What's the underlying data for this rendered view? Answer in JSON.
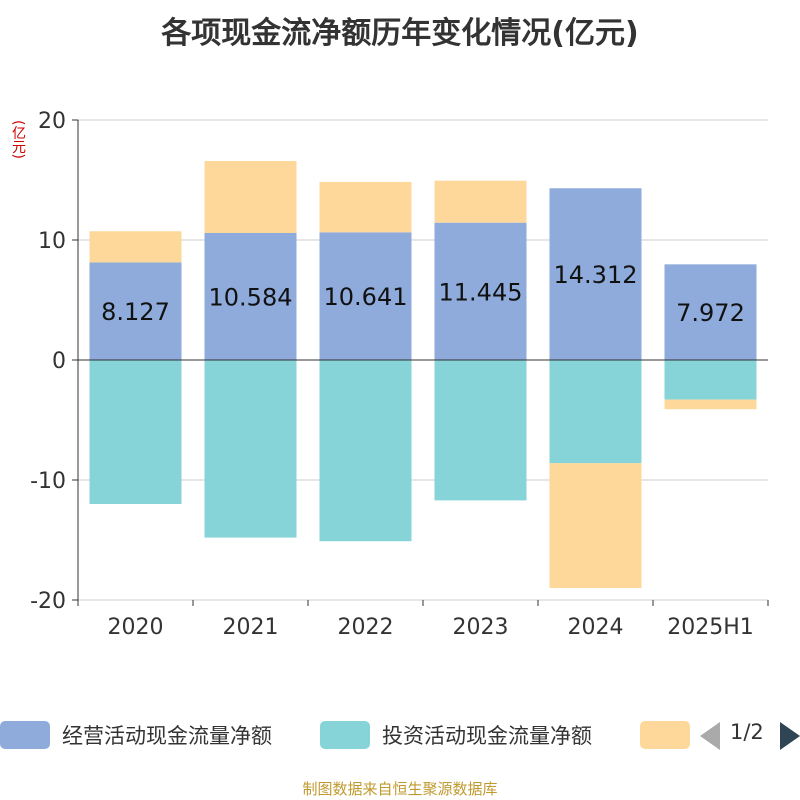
{
  "chart_data": {
    "type": "bar",
    "title": "各项现金流净额历年变化情况(亿元)",
    "ylabel": "(亿元)",
    "ylim": [
      -20,
      20
    ],
    "yticks": [
      20,
      10,
      0,
      -10,
      -20
    ],
    "categories": [
      "2020",
      "2021",
      "2022",
      "2023",
      "2024",
      "2025H1"
    ],
    "stacked": true,
    "grid": true,
    "series": [
      {
        "name": "经营活动现金流量净额",
        "color": "#8eabdb",
        "values": [
          8.127,
          10.584,
          10.641,
          11.445,
          14.312,
          7.972
        ],
        "labels": [
          "8.127",
          "10.584",
          "10.641",
          "11.445",
          "14.312",
          "7.972"
        ]
      },
      {
        "name": "投资活动现金流量净额",
        "color": "#86d4d8",
        "values": [
          -12.0,
          -14.8,
          -15.1,
          -11.7,
          -8.6,
          -3.3
        ]
      },
      {
        "name": "",
        "color": "#fdd89a",
        "values": [
          2.6,
          6.0,
          4.2,
          3.5,
          -10.4,
          -0.8
        ]
      }
    ]
  },
  "legend": {
    "page_indicator": "1/2"
  },
  "source": "制图数据来自恒生聚源数据库"
}
